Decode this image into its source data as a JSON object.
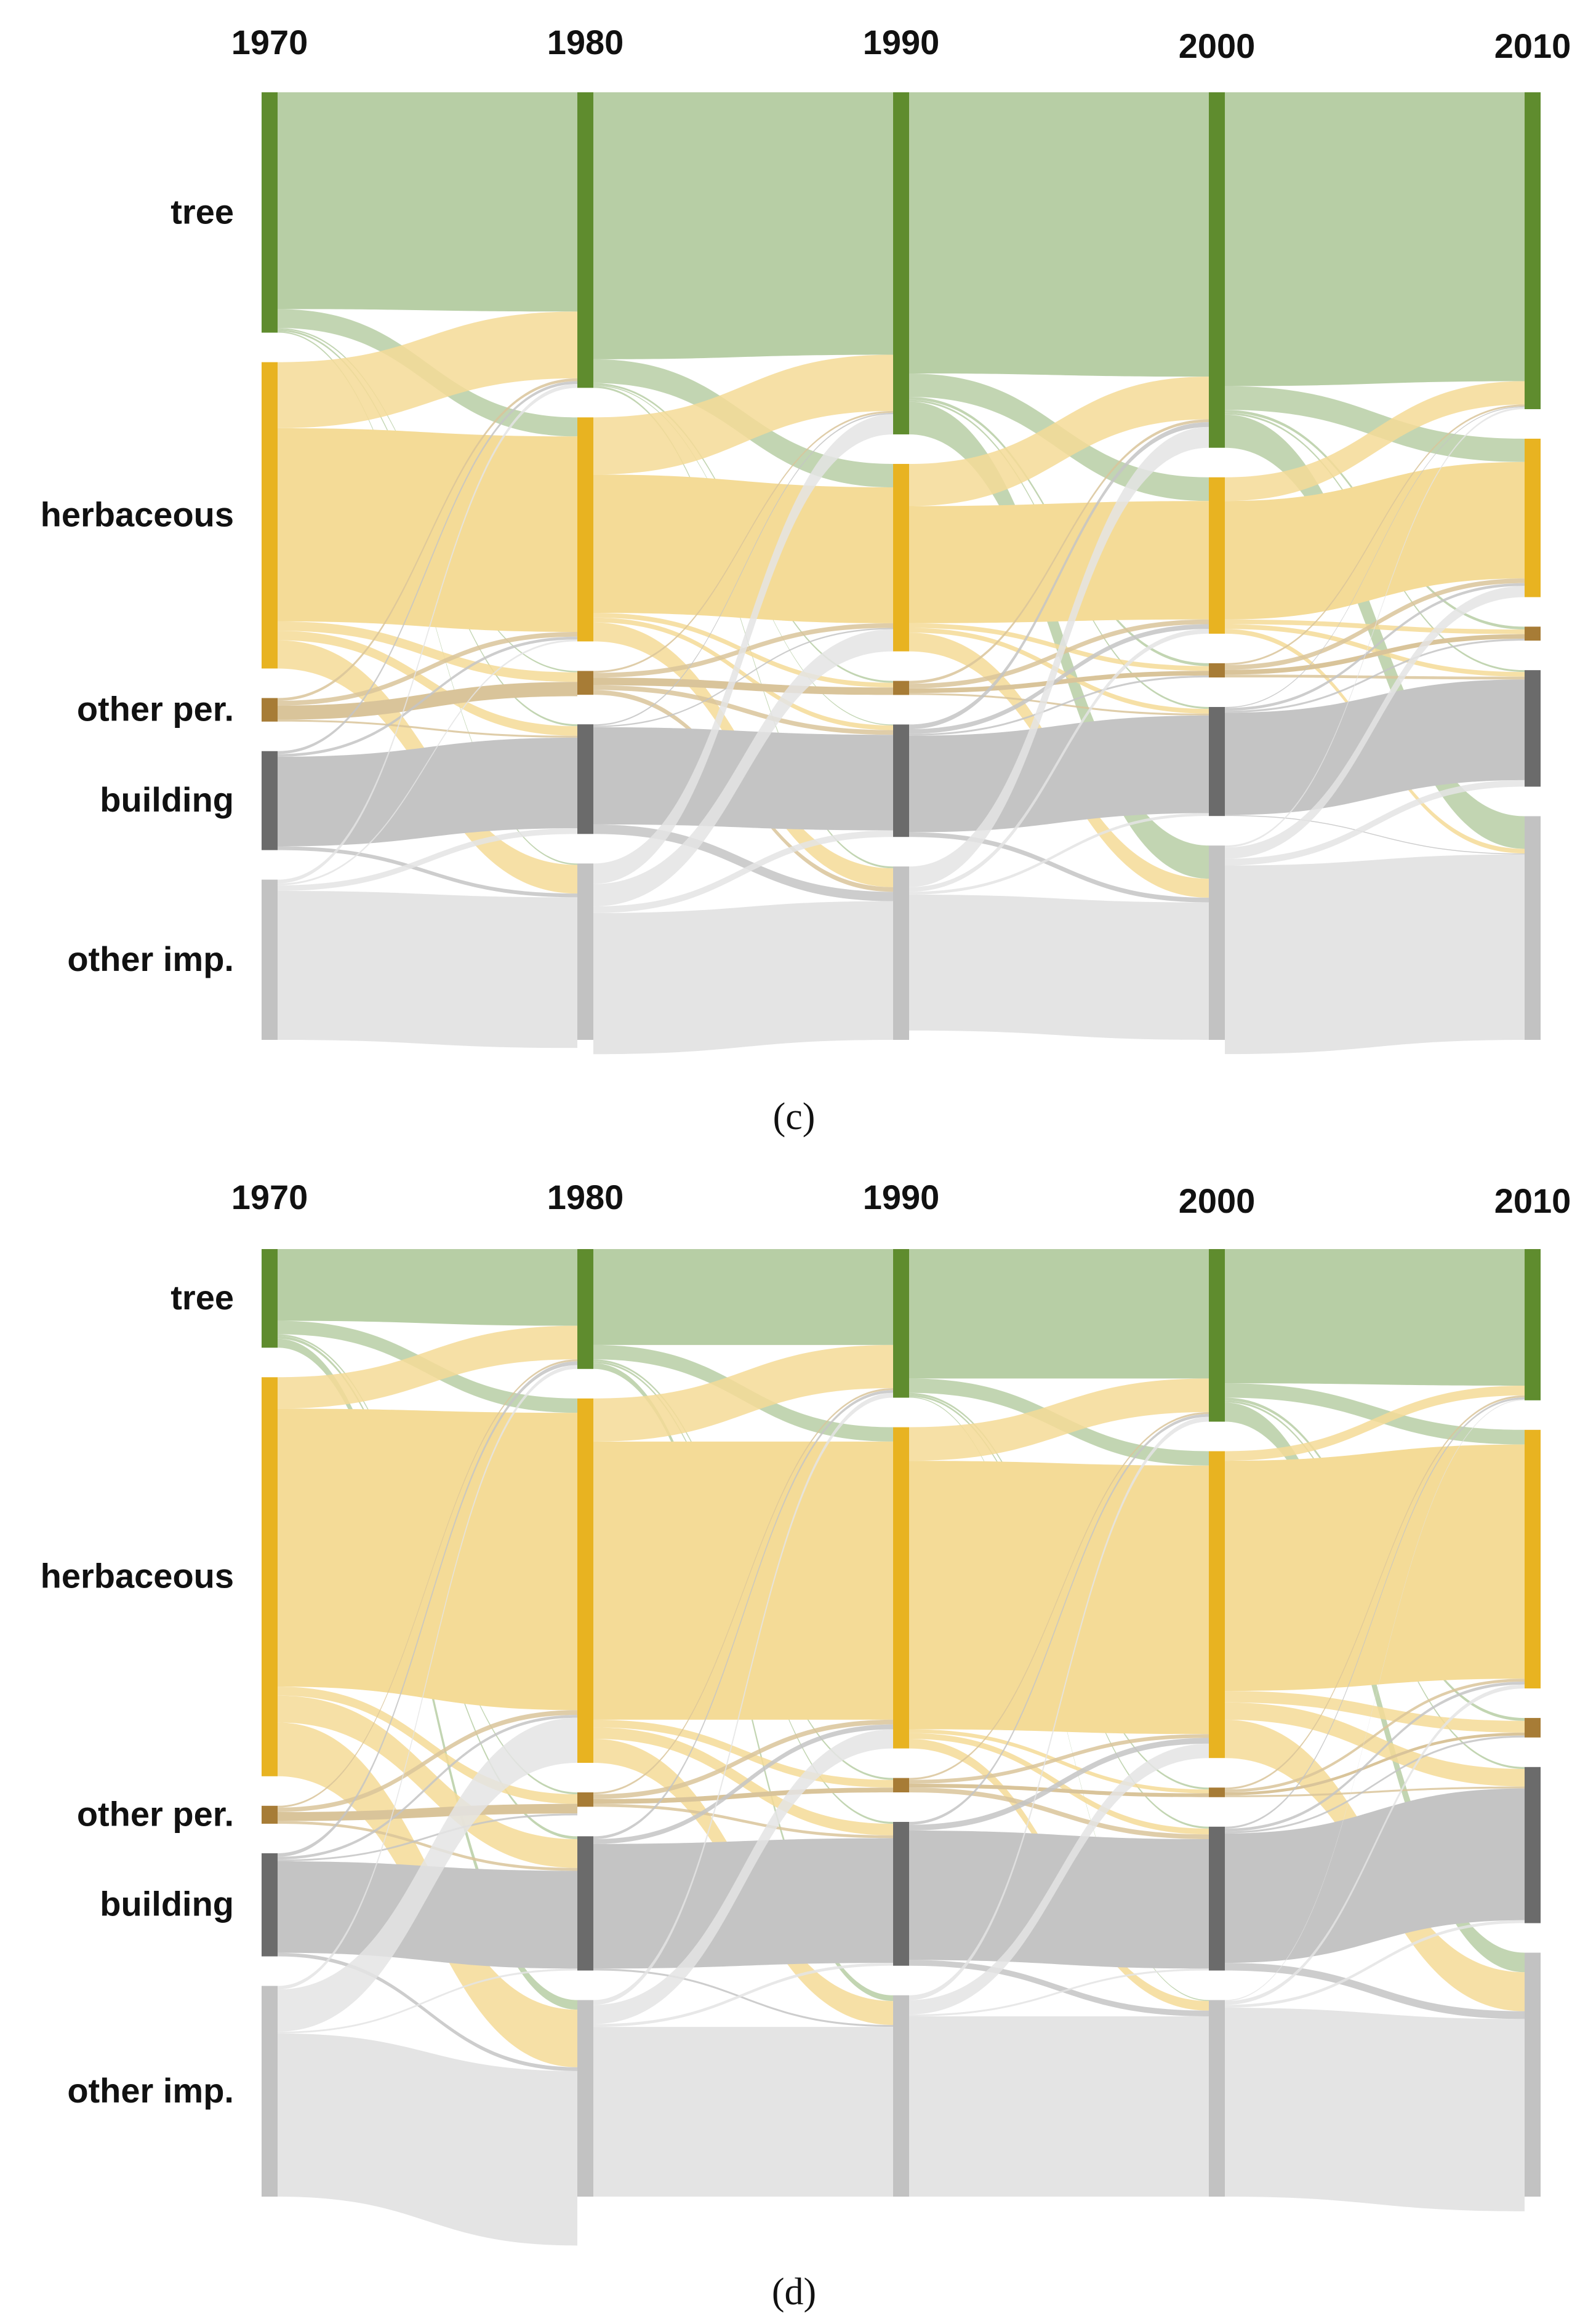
{
  "chart_data": [
    {
      "type": "sankey",
      "panel": "c",
      "years": [
        "1970",
        "1980",
        "1990",
        "2000",
        "2010"
      ],
      "categories": [
        {
          "key": "tree",
          "label": "tree",
          "node_color": "#5f8c2e",
          "flow_color": "#b7cea5"
        },
        {
          "key": "herb",
          "label": "herbaceous",
          "node_color": "#e8b321",
          "flow_color": "#f4db97"
        },
        {
          "key": "otherper",
          "label": "other per.",
          "node_color": "#a77c36",
          "flow_color": "#d9c49a"
        },
        {
          "key": "building",
          "label": "building",
          "node_color": "#6b6b6b",
          "flow_color": "#c4c4c4"
        },
        {
          "key": "otherimp",
          "label": "other imp.",
          "node_color": "#c2c2c2",
          "flow_color": "#e4e4e4"
        }
      ],
      "node_values_percent": {
        "1970": [
          25.5,
          32.5,
          2.5,
          10.5,
          17.0
        ],
        "1980": [
          31.0,
          23.5,
          2.5,
          11.5,
          18.5
        ],
        "1990": [
          36.5,
          20.0,
          1.5,
          12.0,
          18.5
        ],
        "2000": [
          37.5,
          16.5,
          1.5,
          11.5,
          20.5
        ],
        "2010": [
          34.0,
          17.0,
          1.5,
          12.5,
          24.0
        ]
      },
      "transitions": [
        {
          "from": "1970",
          "to": "1980",
          "matrix": [
            [
              23.0,
              2.0,
              0.15,
              0.2,
              0.15
            ],
            [
              7.0,
              20.5,
              1.0,
              1.0,
              3.0
            ],
            [
              0.3,
              0.5,
              1.5,
              0.2,
              0.0
            ],
            [
              0.3,
              0.3,
              0.0,
              9.5,
              0.4
            ],
            [
              0.4,
              0.2,
              0.0,
              0.6,
              15.8
            ]
          ]
        },
        {
          "from": "1980",
          "to": "1990",
          "matrix": [
            [
              28.0,
              2.5,
              0.2,
              0.1,
              0.2
            ],
            [
              6.0,
              14.5,
              0.5,
              0.5,
              2.0
            ],
            [
              0.2,
              0.5,
              0.8,
              0.5,
              0.5
            ],
            [
              0.15,
              0.15,
              0.0,
              10.2,
              1.0
            ],
            [
              2.15,
              2.35,
              0.0,
              0.7,
              14.8
            ]
          ]
        },
        {
          "from": "1990",
          "to": "2000",
          "matrix": [
            [
              30.0,
              2.5,
              0.3,
              0.2,
              3.5
            ],
            [
              4.5,
              12.5,
              0.5,
              0.5,
              2.0
            ],
            [
              0.3,
              0.5,
              0.5,
              0.2,
              0.0
            ],
            [
              0.5,
              0.5,
              0.2,
              10.3,
              0.5
            ],
            [
              2.2,
              0.5,
              0.0,
              0.3,
              14.5
            ]
          ]
        },
        {
          "from": "2000",
          "to": "2010",
          "matrix": [
            [
              31.0,
              2.5,
              0.3,
              0.2,
              3.5
            ],
            [
              2.5,
              12.5,
              0.5,
              0.5,
              0.5
            ],
            [
              0.2,
              0.5,
              0.5,
              0.3,
              0.0
            ],
            [
              0.1,
              0.3,
              0.2,
              10.8,
              0.1
            ],
            [
              0.2,
              1.2,
              0.0,
              0.7,
              19.9
            ]
          ]
        }
      ]
    },
    {
      "type": "sankey",
      "panel": "d",
      "years": [
        "1970",
        "1980",
        "1990",
        "2000",
        "2010"
      ],
      "categories": [
        {
          "key": "tree",
          "label": "tree",
          "node_color": "#5f8c2e",
          "flow_color": "#b7cea5"
        },
        {
          "key": "herb",
          "label": "herbaceous",
          "node_color": "#e8b321",
          "flow_color": "#f4db97"
        },
        {
          "key": "otherper",
          "label": "other per.",
          "node_color": "#a77c36",
          "flow_color": "#d9c49a"
        },
        {
          "key": "building",
          "label": "building",
          "node_color": "#6b6b6b",
          "flow_color": "#c4c4c4"
        },
        {
          "key": "otherimp",
          "label": "other imp.",
          "node_color": "#c2c2c2",
          "flow_color": "#e4e4e4"
        }
      ],
      "node_values_percent": {
        "1970": [
          11.0,
          44.5,
          2.0,
          11.5,
          23.5
        ],
        "1980": [
          12.5,
          38.0,
          1.5,
          14.0,
          20.5
        ],
        "1990": [
          15.5,
          33.5,
          1.5,
          15.0,
          21.0
        ],
        "2000": [
          18.0,
          32.0,
          1.0,
          15.0,
          20.5
        ],
        "2010": [
          15.5,
          26.5,
          2.0,
          16.0,
          25.0
        ]
      },
      "transitions": [
        {
          "from": "1970",
          "to": "1980",
          "matrix": [
            [
              8.0,
              1.5,
              0.2,
              0.3,
              1.0
            ],
            [
              3.5,
              31.0,
              1.0,
              3.0,
              6.0
            ],
            [
              0.2,
              0.5,
              1.0,
              0.3,
              0.0
            ],
            [
              0.4,
              0.3,
              0.2,
              10.2,
              0.4
            ],
            [
              0.4,
              4.7,
              0.0,
              0.2,
              18.2
            ]
          ]
        },
        {
          "from": "1980",
          "to": "1990",
          "matrix": [
            [
              10.0,
              1.5,
              0.2,
              0.2,
              0.6
            ],
            [
              4.5,
              29.0,
              0.8,
              1.2,
              2.5
            ],
            [
              0.2,
              0.5,
              0.5,
              0.3,
              0.0
            ],
            [
              0.3,
              0.5,
              0.0,
              13.0,
              0.2
            ],
            [
              0.5,
              2.0,
              0.0,
              0.3,
              17.7
            ]
          ]
        },
        {
          "from": "1990",
          "to": "2000",
          "matrix": [
            [
              13.5,
              1.5,
              0.2,
              0.2,
              0.1
            ],
            [
              3.5,
              28.0,
              0.4,
              0.6,
              1.0
            ],
            [
              0.2,
              0.4,
              0.4,
              0.5,
              0.0
            ],
            [
              0.3,
              0.6,
              0.0,
              13.5,
              0.6
            ],
            [
              0.5,
              1.5,
              0.0,
              0.2,
              18.8
            ]
          ]
        },
        {
          "from": "2000",
          "to": "2010",
          "matrix": [
            [
              14.0,
              1.5,
              0.3,
              0.2,
              2.0
            ],
            [
              1.0,
              24.0,
              1.2,
              1.8,
              4.0
            ],
            [
              0.2,
              0.3,
              0.3,
              0.2,
              0.0
            ],
            [
              0.2,
              0.3,
              0.2,
              13.5,
              0.8
            ],
            [
              0.1,
              0.4,
              0.0,
              0.3,
              19.7
            ]
          ]
        }
      ]
    }
  ],
  "captions": {
    "c": "(c)",
    "d": "(d)"
  }
}
